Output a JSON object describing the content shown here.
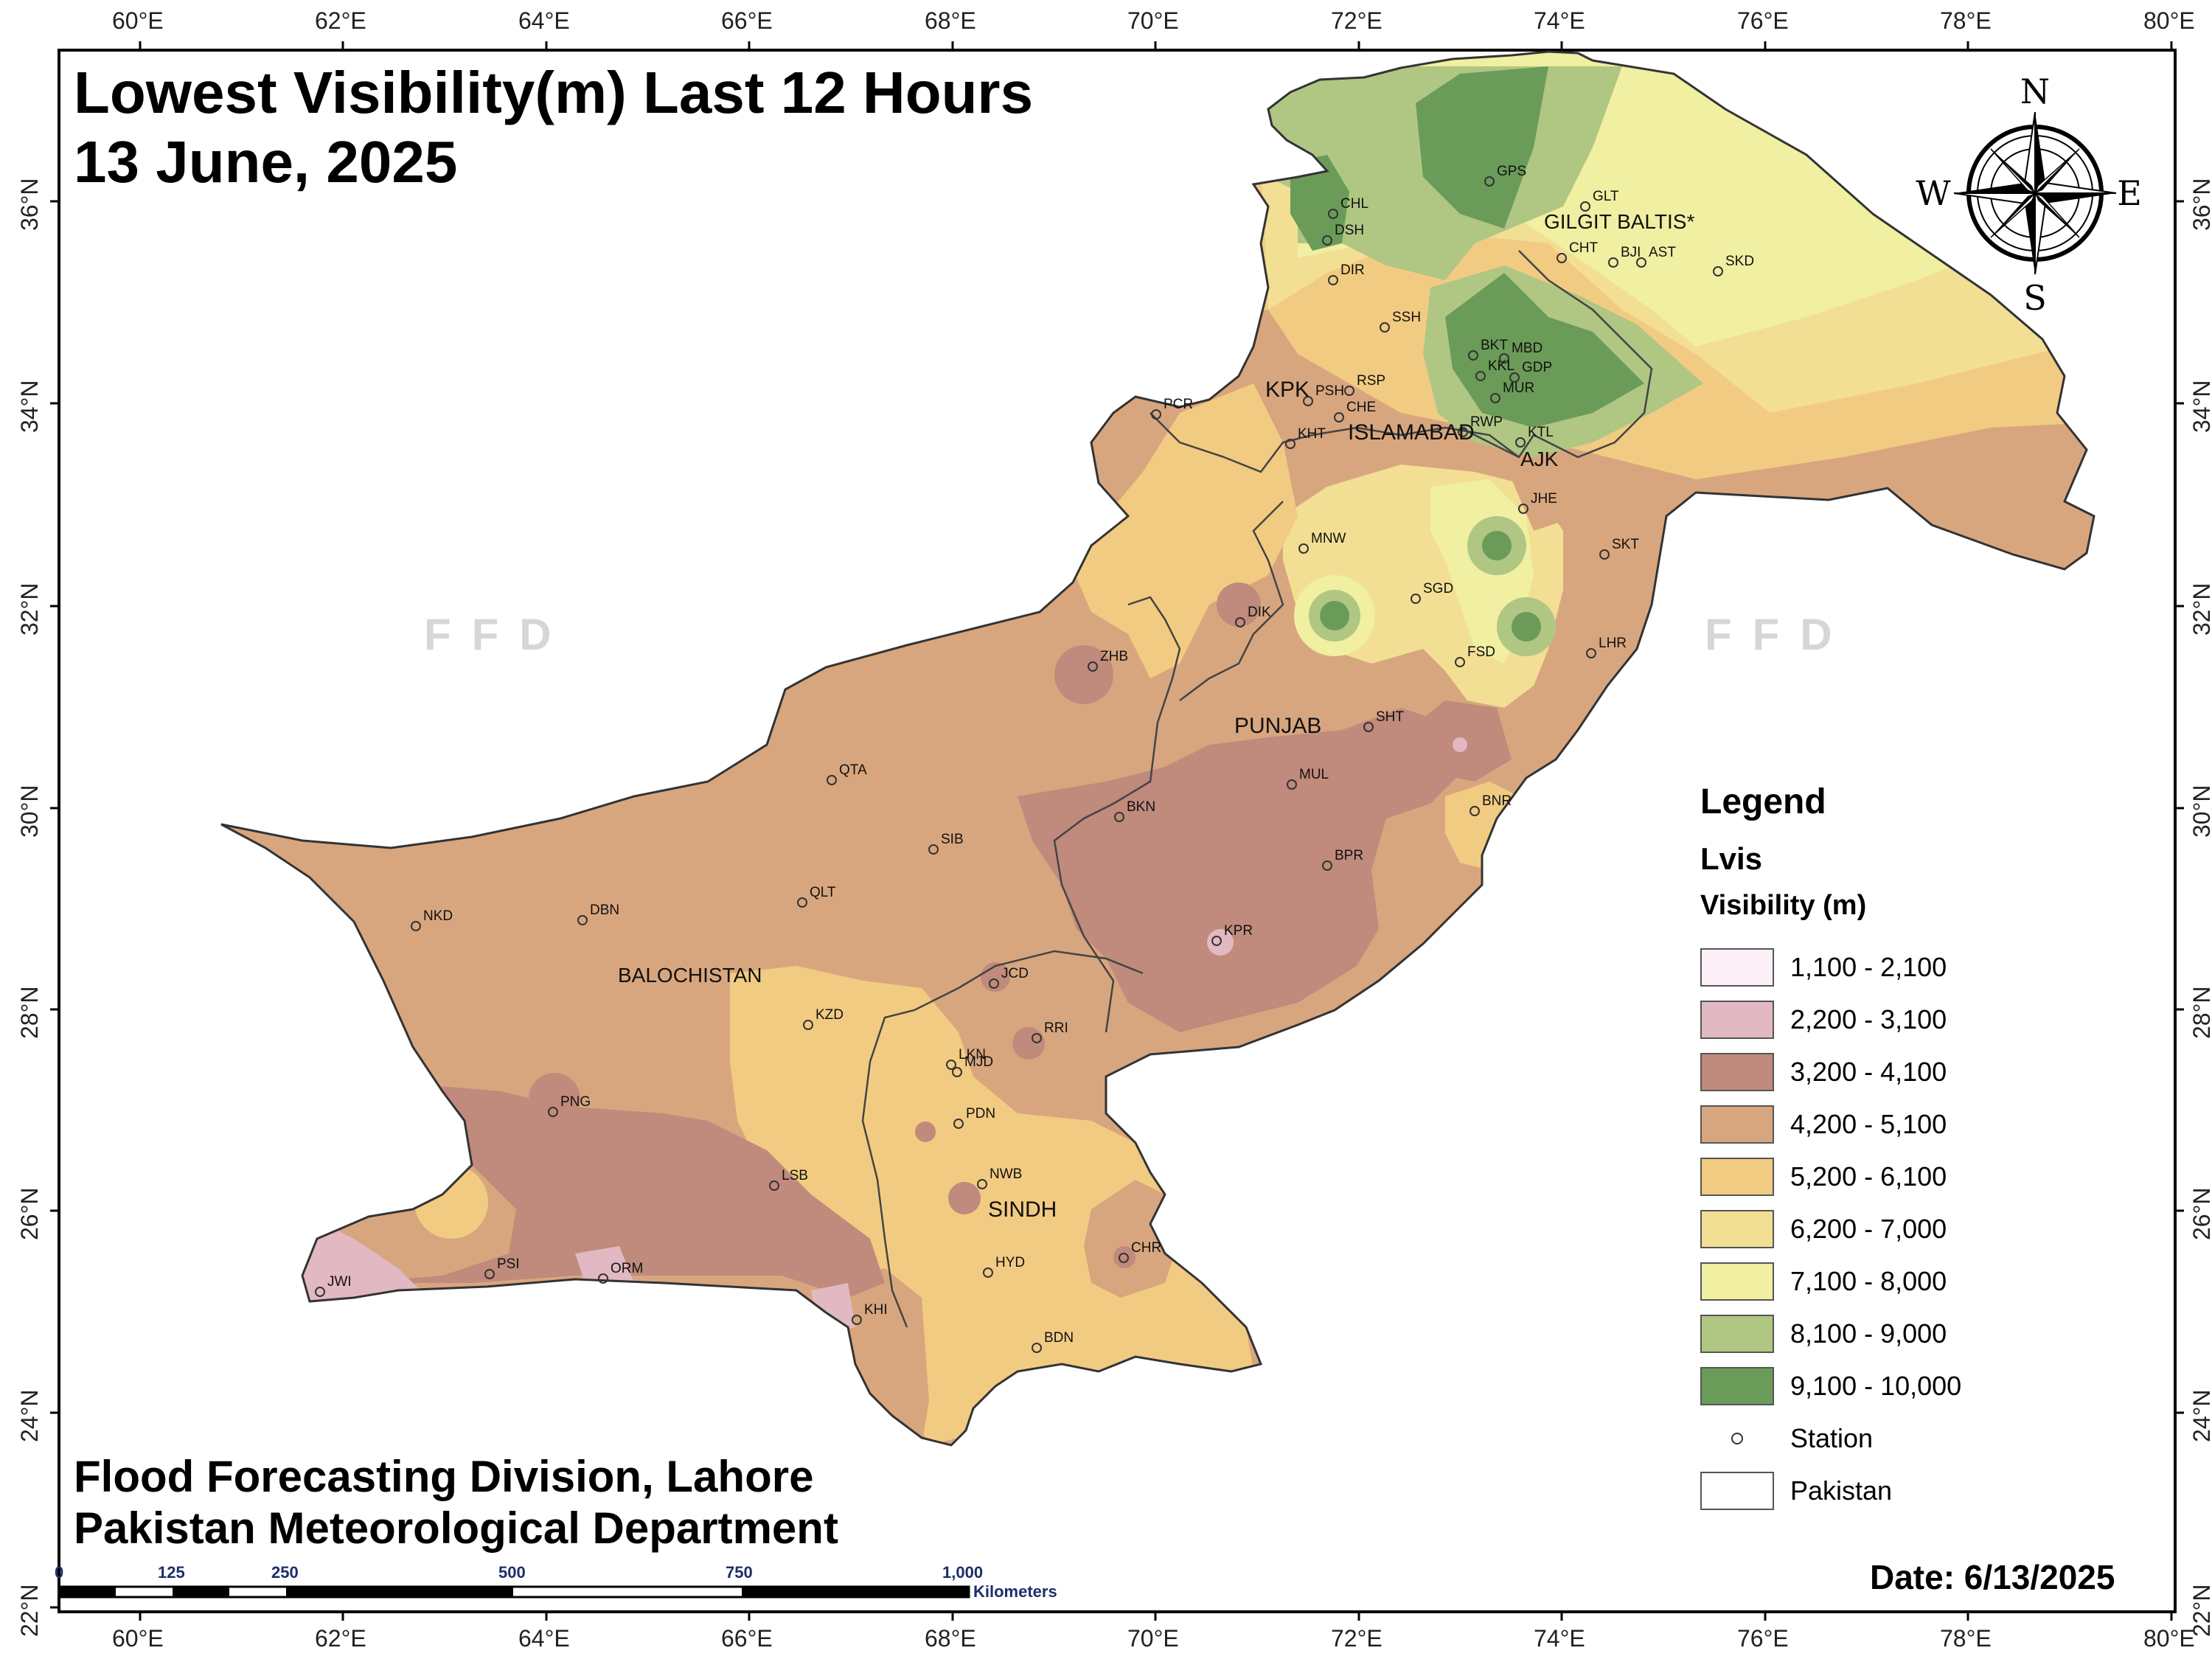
{
  "title": {
    "line1": "Lowest Visibility(m) Last 12 Hours",
    "line2": "13 June, 2025"
  },
  "footer": {
    "line1": "Flood Forecasting Division, Lahore",
    "line2": "Pakistan Meteorological Department",
    "date": "Date: 6/13/2025"
  },
  "watermark": "FFD",
  "compass": {
    "n": "N",
    "e": "E",
    "s": "S",
    "w": "W"
  },
  "axes": {
    "lon_ticks": [
      "60°E",
      "62°E",
      "64°E",
      "66°E",
      "68°E",
      "70°E",
      "72°E",
      "74°E",
      "76°E",
      "78°E",
      "80°E"
    ],
    "lat_ticks": [
      "36°N",
      "34°N",
      "32°N",
      "30°N",
      "28°N",
      "26°N",
      "24°N",
      "22°N"
    ]
  },
  "scale_bar": {
    "labels": [
      "0",
      "125",
      "250",
      "500",
      "750",
      "1,000"
    ],
    "unit": "Kilometers"
  },
  "legend": {
    "heading": "Legend",
    "field": "Lvis",
    "subtitle": "Visibility (m)",
    "classes": [
      {
        "label": "1,100 - 2,100",
        "color": "#fdf0f8"
      },
      {
        "label": "2,200 - 3,100",
        "color": "#e2b8c2"
      },
      {
        "label": "3,200 - 4,100",
        "color": "#c08a7d"
      },
      {
        "label": "4,200 - 5,100",
        "color": "#d8a67e"
      },
      {
        "label": "5,200 - 6,100",
        "color": "#f2cb82"
      },
      {
        "label": "6,200 - 7,000",
        "color": "#f2df94"
      },
      {
        "label": "7,100 - 8,000",
        "color": "#f0efa2"
      },
      {
        "label": "8,100 - 9,000",
        "color": "#b0c683"
      },
      {
        "label": "9,100 - 10,000",
        "color": "#6b9b58"
      }
    ],
    "station_label": "Station",
    "pakistan_label": "Pakistan"
  },
  "regions": [
    "GILGIT BALTIS*",
    "KPK",
    "ISLAMABAD",
    "AJK",
    "PUNJAB",
    "BALOCHISTAN",
    "SINDH"
  ],
  "stations": [
    "GPS",
    "CHL",
    "DSH",
    "GLT",
    "CHT",
    "BJI",
    "AST",
    "SKD",
    "DIR",
    "SSH",
    "BKT",
    "MBD",
    "KKL",
    "GDP",
    "MUR",
    "PSH",
    "RSP",
    "CHE",
    "PCR",
    "KHT",
    "RWP",
    "KTL",
    "JHE",
    "SKT",
    "MNW",
    "SGD",
    "DIK",
    "FSD",
    "LHR",
    "ZHB",
    "SHT",
    "QTA",
    "MUL",
    "BKN",
    "BNR",
    "SIB",
    "BPR",
    "QLT",
    "NKD",
    "DBN",
    "KPR",
    "JCD",
    "KZD",
    "RRI",
    "LKN",
    "MJD",
    "PNG",
    "PDN",
    "NWB",
    "LSB",
    "HYD",
    "CHR",
    "JWI",
    "PSI",
    "ORM",
    "KHI",
    "BDN"
  ]
}
